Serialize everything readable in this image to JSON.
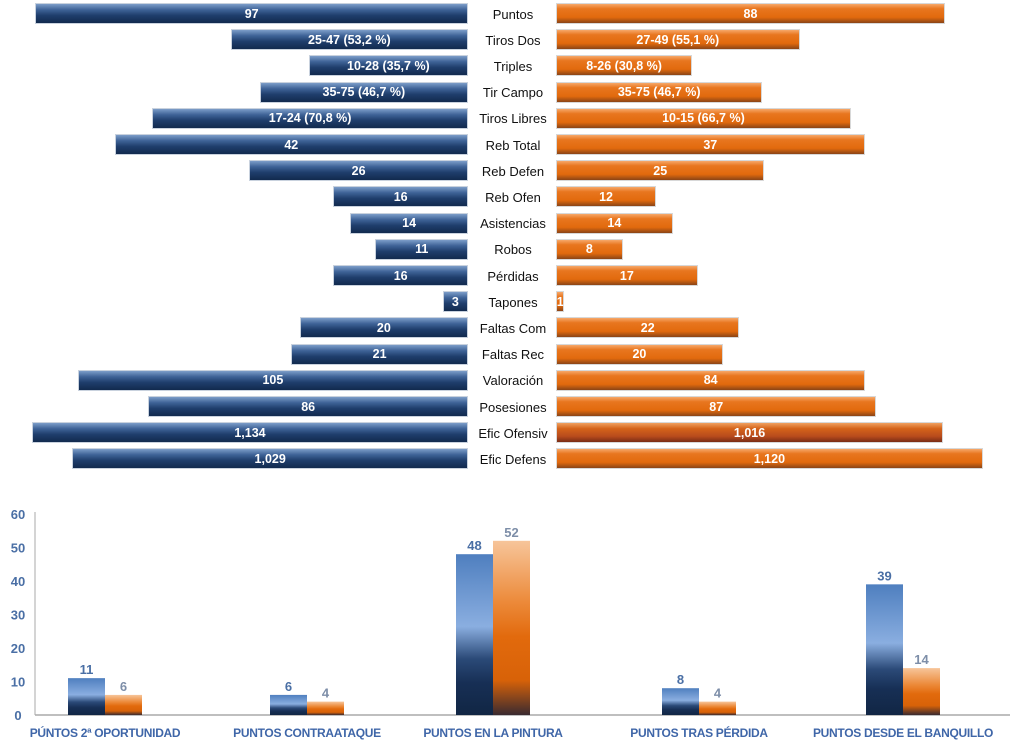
{
  "colors": {
    "home": "#1f3e6c",
    "away": "#e26a0d",
    "axis_text": "#4a6fa5"
  },
  "chart_data": [
    {
      "type": "bar",
      "orientation": "horizontal-diverging",
      "categories": [
        "Puntos",
        "Tiros Dos",
        "Triples",
        "Tir Campo",
        "Tiros Libres",
        "Reb Total",
        "Reb Defen",
        "Reb Ofen",
        "Asistencias",
        "Robos",
        "Pérdidas",
        "Tapones",
        "Faltas Com",
        "Faltas Rec",
        "Valoración",
        "Posesiones",
        "Efic Ofensiv",
        "Efic Defens"
      ],
      "series": [
        {
          "name": "home",
          "side": "left",
          "values": [
            97,
            53.2,
            35.7,
            46.7,
            70.8,
            42,
            26,
            16,
            14,
            11,
            16,
            3,
            20,
            21,
            105,
            86,
            1.134,
            1.029
          ],
          "labels": [
            "97",
            "25-47 (53,2 %)",
            "10-28 (35,7 %)",
            "35-75 (46,7 %)",
            "17-24 (70,8 %)",
            "42",
            "26",
            "16",
            "14",
            "11",
            "16",
            "3",
            "20",
            "21",
            "105",
            "86",
            "1,134",
            "1,029"
          ]
        },
        {
          "name": "away",
          "side": "right",
          "values": [
            88,
            55.1,
            30.8,
            46.7,
            66.7,
            37,
            25,
            12,
            14,
            8,
            17,
            1,
            22,
            20,
            84,
            87,
            1.016,
            1.12
          ],
          "labels": [
            "88",
            "27-49 (55,1 %)",
            "8-26 (30,8 %)",
            "35-75 (46,7 %)",
            "10-15 (66,7 %)",
            "37",
            "25",
            "12",
            "14",
            "8",
            "17",
            "1",
            "22",
            "20",
            "84",
            "87",
            "1,016",
            "1,120"
          ]
        }
      ]
    },
    {
      "type": "bar",
      "categories": [
        "PÚNTOS 2ª OPORTUNIDAD",
        "PUNTOS CONTRAATAQUE",
        "PUNTOS EN LA PINTURA",
        "PUNTOS TRAS PÉRDIDA",
        "PUNTOS DESDE EL BANQUILLO"
      ],
      "series": [
        {
          "name": "home",
          "values": [
            11,
            6,
            48,
            8,
            39
          ]
        },
        {
          "name": "away",
          "values": [
            6,
            4,
            52,
            4,
            14
          ]
        }
      ],
      "ylim": [
        0,
        60
      ],
      "yticks": [
        "0",
        "10",
        "20",
        "30",
        "40",
        "50",
        "60"
      ],
      "xlabel": "",
      "ylabel": "",
      "title": ""
    }
  ]
}
